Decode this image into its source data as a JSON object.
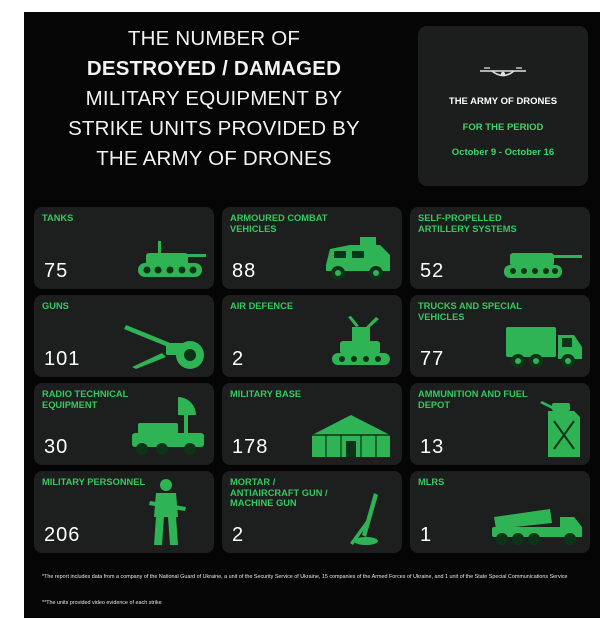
{
  "title": {
    "line1": "THE NUMBER OF",
    "line2": "DESTROYED / DAMAGED",
    "line3": "MILITARY EQUIPMENT BY",
    "line4": "STRIKE UNITS PROVIDED BY",
    "line5": "THE ARMY OF DRONES"
  },
  "brand": {
    "name": "THE ARMY OF DRONES",
    "period_label": "FOR THE PERIOD",
    "dates": "October 9 - October 16"
  },
  "tiles": [
    {
      "label": "TANKS",
      "value": "75",
      "icon": "tank-icon"
    },
    {
      "label": "ARMOURED COMBAT VEHICLES",
      "value": "88",
      "icon": "armoured-vehicle-icon"
    },
    {
      "label": "SELF-PROPELLED ARTILLERY SYSTEMS",
      "value": "52",
      "icon": "self-propelled-artillery-icon"
    },
    {
      "label": "GUNS",
      "value": "101",
      "icon": "howitzer-icon"
    },
    {
      "label": "AIR DEFENCE",
      "value": "2",
      "icon": "air-defence-icon"
    },
    {
      "label": "TRUCKS AND SPECIAL VEHICLES",
      "value": "77",
      "icon": "truck-icon"
    },
    {
      "label": "RADIO TECHNICAL EQUIPMENT",
      "value": "30",
      "icon": "radio-equipment-icon"
    },
    {
      "label": "MILITARY BASE",
      "value": "178",
      "icon": "tent-icon"
    },
    {
      "label": "AMMUNITION AND FUEL DEPOT",
      "value": "13",
      "icon": "jerrycan-icon"
    },
    {
      "label": "MILITARY PERSONNEL",
      "value": "206",
      "icon": "soldier-icon"
    },
    {
      "label": "MORTAR / ANTIAIRCRAFT GUN / MACHINE GUN",
      "value": "2",
      "icon": "mortar-icon"
    },
    {
      "label": "MLRS",
      "value": "1",
      "icon": "mlrs-icon"
    }
  ],
  "colors": {
    "accent": "#33c95f",
    "tile_bg": "#1d1f1e",
    "background": "#050505"
  },
  "footnotes": {
    "note1": "*The report includes data from a company of the National Guard of Ukraine, a unit of the Security Service of Ukraine, 15 companies of the Armed Forces of Ukraine, and 1 unit of the State Special Communications Service",
    "note2": "**The units provided video evidence of each strike"
  }
}
